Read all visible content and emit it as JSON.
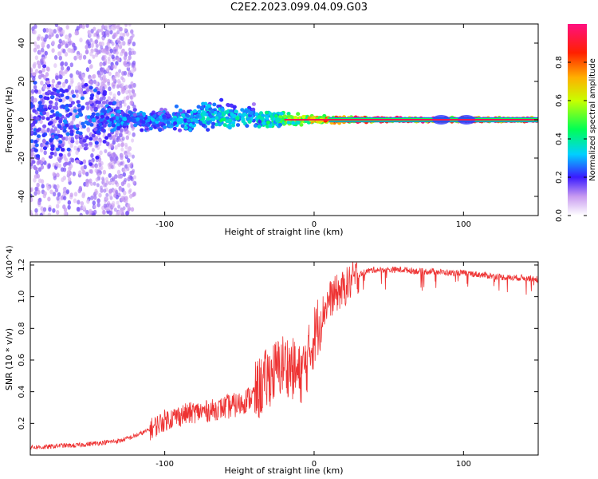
{
  "title": "C2E2.2023.099.04.09.G03",
  "chart_data": [
    {
      "type": "heatmap",
      "xlabel": "Height of straight line (km)",
      "ylabel": "Frequency (Hz)",
      "xlim": [
        -190,
        150
      ],
      "ylim": [
        -50,
        50
      ],
      "x_ticks": [
        -100,
        0,
        100
      ],
      "y_ticks": [
        -40,
        -20,
        0,
        20,
        40
      ],
      "colorbar": {
        "label": "Normalized spectral amplitude",
        "range": [
          0,
          1
        ],
        "ticks": [
          0.0,
          0.2,
          0.4,
          0.6,
          0.8
        ],
        "colors": [
          "#ffffff",
          "#8a2be2",
          "#3020ff",
          "#00c8ff",
          "#00ff40",
          "#ffff00",
          "#ff8000",
          "#ff0000",
          "#ff1493"
        ]
      },
      "band_profile": [
        {
          "height": -190,
          "amplitude": 0.25,
          "spread_hz": 40
        },
        {
          "height": -150,
          "amplitude": 0.25,
          "spread_hz": 40
        },
        {
          "height": -130,
          "amplitude": 0.3,
          "spread_hz": 8
        },
        {
          "height": -100,
          "amplitude": 0.3,
          "spread_hz": 8
        },
        {
          "height": -80,
          "amplitude": 0.35,
          "spread_hz": 10
        },
        {
          "height": -60,
          "amplitude": 0.4,
          "spread_hz": 12
        },
        {
          "height": -40,
          "amplitude": 0.35,
          "spread_hz": 8
        },
        {
          "height": -20,
          "amplitude": 0.5,
          "spread_hz": 5
        },
        {
          "height": 0,
          "amplitude": 0.75,
          "spread_hz": 3
        },
        {
          "height": 40,
          "amplitude": 0.95,
          "spread_hz": 1.5
        },
        {
          "height": 80,
          "amplitude": 0.95,
          "spread_hz": 1.5
        },
        {
          "height": 100,
          "amplitude": 0.95,
          "spread_hz": 1.5
        },
        {
          "height": 150,
          "amplitude": 0.95,
          "spread_hz": 1.5
        }
      ]
    },
    {
      "type": "line",
      "xlabel": "Height of straight line (km)",
      "ylabel": "SNR (10 * v/v)",
      "y_multiplier": "(x10^4)",
      "xlim": [
        -190,
        150
      ],
      "ylim": [
        0,
        1.22
      ],
      "x_ticks": [
        -100,
        0,
        100
      ],
      "y_ticks": [
        0.2,
        0.4,
        0.6,
        0.8,
        1.0,
        1.2
      ],
      "color": "#ee3333",
      "series": [
        {
          "x": [
            -190,
            -180,
            -170,
            -160,
            -150,
            -140,
            -130,
            -120,
            -110,
            -100,
            -90,
            -80,
            -70,
            -60,
            -50,
            -40,
            -30,
            -20,
            -15,
            -10,
            -5,
            0,
            5,
            10,
            15,
            20,
            25,
            30,
            35,
            40,
            50,
            60,
            70,
            80,
            90,
            100,
            110,
            120,
            130,
            140,
            150
          ],
          "values": [
            0.05,
            0.05,
            0.06,
            0.06,
            0.07,
            0.08,
            0.09,
            0.12,
            0.16,
            0.22,
            0.25,
            0.27,
            0.28,
            0.3,
            0.32,
            0.38,
            0.5,
            0.58,
            0.55,
            0.5,
            0.58,
            0.75,
            0.88,
            0.98,
            1.02,
            1.05,
            1.1,
            1.14,
            1.16,
            1.17,
            1.17,
            1.17,
            1.16,
            1.16,
            1.15,
            1.15,
            1.14,
            1.13,
            1.12,
            1.12,
            1.11
          ]
        }
      ]
    }
  ]
}
